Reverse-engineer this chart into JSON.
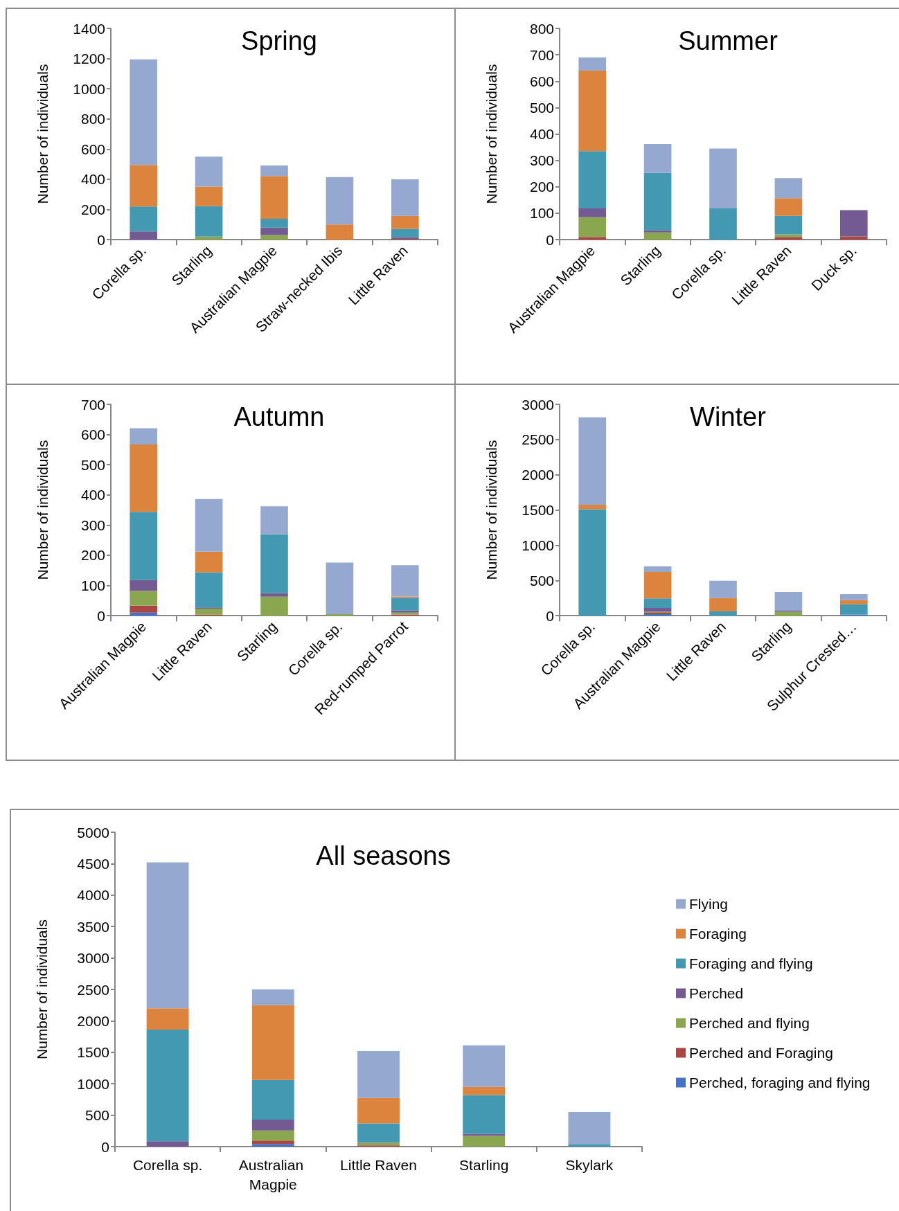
{
  "chart_data": [
    {
      "type": "bar",
      "title": "Spring",
      "ylabel": "Number of individuals",
      "categories": [
        "Corella sp.",
        "Starling",
        "Australian Magpie",
        "Straw-necked Ibis",
        "Little Raven"
      ],
      "stacked": true,
      "legend": false,
      "grid": false,
      "ylim": [
        0,
        1400
      ],
      "yticks": [
        0,
        200,
        400,
        600,
        800,
        1000,
        1200,
        1400
      ],
      "series": [
        {
          "color": "#4472c4",
          "values": [
            0,
            0,
            0,
            0,
            0
          ]
        },
        {
          "color": "#aa4643",
          "values": [
            0,
            0,
            0,
            0,
            5
          ]
        },
        {
          "color": "#8aa64e",
          "values": [
            0,
            20,
            30,
            0,
            0
          ]
        },
        {
          "color": "#735a92",
          "values": [
            55,
            0,
            50,
            0,
            10
          ]
        },
        {
          "color": "#4299b1",
          "values": [
            165,
            202,
            58,
            0,
            55
          ]
        },
        {
          "color": "#dc843e",
          "values": [
            275,
            130,
            284,
            100,
            88
          ]
        },
        {
          "color": "#95a9d0",
          "values": [
            700,
            198,
            70,
            315,
            242
          ]
        }
      ]
    },
    {
      "type": "bar",
      "title": "Summer",
      "ylabel": "Number of individuals",
      "categories": [
        "Australian Magpie",
        "Starling",
        "Corella sp.",
        "Little Raven",
        "Duck sp."
      ],
      "stacked": true,
      "legend": false,
      "grid": false,
      "ylim": [
        0,
        800
      ],
      "yticks": [
        0,
        100,
        200,
        300,
        400,
        500,
        600,
        700,
        800
      ],
      "series": [
        {
          "color": "#4472c4",
          "values": [
            0,
            0,
            0,
            0,
            0
          ]
        },
        {
          "color": "#aa4643",
          "values": [
            10,
            0,
            0,
            10,
            12
          ]
        },
        {
          "color": "#8aa64e",
          "values": [
            75,
            27,
            0,
            10,
            0
          ]
        },
        {
          "color": "#735a92",
          "values": [
            33,
            8,
            0,
            0,
            100
          ]
        },
        {
          "color": "#4299b1",
          "values": [
            217,
            218,
            118,
            70,
            0
          ]
        },
        {
          "color": "#dc843e",
          "values": [
            305,
            0,
            0,
            67,
            0
          ]
        },
        {
          "color": "#95a9d0",
          "values": [
            50,
            109,
            227,
            76,
            0
          ]
        }
      ]
    },
    {
      "type": "bar",
      "title": "Autumn",
      "ylabel": "Number of individuals",
      "categories": [
        "Australian Magpie",
        "Little Raven",
        "Starling",
        "Corella sp.",
        "Red-rumped Parrot"
      ],
      "stacked": true,
      "legend": false,
      "grid": false,
      "ylim": [
        0,
        700
      ],
      "yticks": [
        0,
        100,
        200,
        300,
        400,
        500,
        600,
        700
      ],
      "series": [
        {
          "color": "#4472c4",
          "values": [
            10,
            0,
            0,
            0,
            0
          ]
        },
        {
          "color": "#aa4643",
          "values": [
            23,
            3,
            0,
            0,
            4
          ]
        },
        {
          "color": "#8aa64e",
          "values": [
            49,
            20,
            63,
            5,
            6
          ]
        },
        {
          "color": "#735a92",
          "values": [
            36,
            4,
            12,
            0,
            7
          ]
        },
        {
          "color": "#4299b1",
          "values": [
            226,
            116,
            195,
            0,
            41
          ]
        },
        {
          "color": "#dc843e",
          "values": [
            223,
            69,
            0,
            0,
            5
          ]
        },
        {
          "color": "#95a9d0",
          "values": [
            54,
            174,
            92,
            171,
            104
          ]
        }
      ]
    },
    {
      "type": "bar",
      "title": "Winter",
      "ylabel": "Number of individuals",
      "categories": [
        "Corella sp.",
        "Australian Magpie",
        "Little Raven",
        "Starling",
        "Sulphur Crested…"
      ],
      "stacked": true,
      "legend": false,
      "grid": false,
      "ylim": [
        0,
        3000
      ],
      "yticks": [
        0,
        500,
        1000,
        1500,
        2000,
        2500,
        3000
      ],
      "series": [
        {
          "color": "#4472c4",
          "values": [
            0,
            20,
            0,
            0,
            15
          ]
        },
        {
          "color": "#aa4643",
          "values": [
            0,
            20,
            0,
            0,
            0
          ]
        },
        {
          "color": "#8aa64e",
          "values": [
            0,
            15,
            0,
            55,
            0
          ]
        },
        {
          "color": "#735a92",
          "values": [
            0,
            55,
            0,
            15,
            0
          ]
        },
        {
          "color": "#4299b1",
          "values": [
            1510,
            135,
            60,
            0,
            145
          ]
        },
        {
          "color": "#dc843e",
          "values": [
            65,
            375,
            190,
            0,
            60
          ]
        },
        {
          "color": "#95a9d0",
          "values": [
            1240,
            80,
            245,
            265,
            85
          ]
        }
      ]
    },
    {
      "type": "bar",
      "title": "All seasons",
      "ylabel": "Number of individuals",
      "categories": [
        "Corella sp.",
        "Australian Magpie",
        "Little Raven",
        "Starling",
        "Skylark"
      ],
      "stacked": true,
      "legend": "right",
      "grid": false,
      "ylim": [
        0,
        5000
      ],
      "yticks": [
        0,
        500,
        1000,
        1500,
        2000,
        2500,
        3000,
        3500,
        4000,
        4500,
        5000
      ],
      "series": [
        {
          "name": "Perched, foraging and flying",
          "color": "#4472c4",
          "values": [
            0,
            40,
            0,
            0,
            0
          ]
        },
        {
          "name": "Perched and Foraging",
          "color": "#aa4643",
          "values": [
            0,
            55,
            20,
            0,
            0
          ]
        },
        {
          "name": "Perched and flying",
          "color": "#8aa64e",
          "values": [
            0,
            160,
            40,
            170,
            0
          ]
        },
        {
          "name": "Perched",
          "color": "#735a92",
          "values": [
            85,
            175,
            10,
            35,
            0
          ]
        },
        {
          "name": "Foraging and flying",
          "color": "#4299b1",
          "values": [
            1775,
            630,
            300,
            615,
            40
          ]
        },
        {
          "name": "Foraging",
          "color": "#dc843e",
          "values": [
            340,
            1190,
            405,
            130,
            0
          ]
        },
        {
          "name": "Flying",
          "color": "#95a9d0",
          "values": [
            2320,
            250,
            745,
            660,
            510
          ]
        }
      ]
    }
  ]
}
